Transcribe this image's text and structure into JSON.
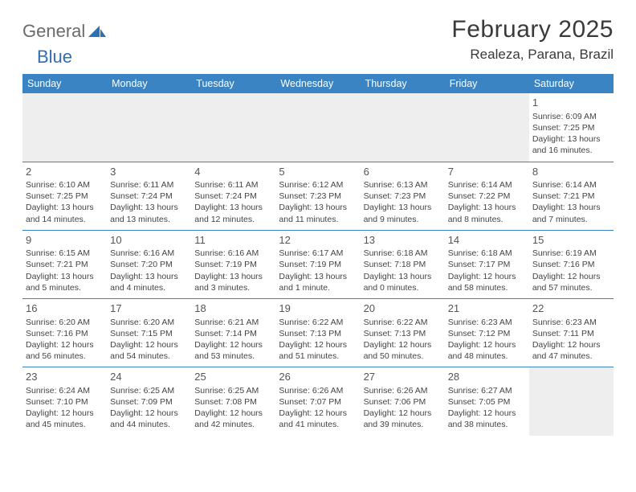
{
  "logo": {
    "text1": "General",
    "text2": "Blue"
  },
  "title": "February 2025",
  "location": "Realeza, Parana, Brazil",
  "colors": {
    "header_bg": "#3b84c4",
    "header_text": "#ffffff",
    "row_border": "#3b84c4",
    "blank_bg": "#eeeeee",
    "logo_gray": "#6a6a6a",
    "logo_blue": "#2f6fb3"
  },
  "weekdays": [
    "Sunday",
    "Monday",
    "Tuesday",
    "Wednesday",
    "Thursday",
    "Friday",
    "Saturday"
  ],
  "weeks": [
    [
      null,
      null,
      null,
      null,
      null,
      null,
      {
        "d": "1",
        "sr": "6:09 AM",
        "ss": "7:25 PM",
        "dl": "13 hours and 16 minutes."
      }
    ],
    [
      {
        "d": "2",
        "sr": "6:10 AM",
        "ss": "7:25 PM",
        "dl": "13 hours and 14 minutes."
      },
      {
        "d": "3",
        "sr": "6:11 AM",
        "ss": "7:24 PM",
        "dl": "13 hours and 13 minutes."
      },
      {
        "d": "4",
        "sr": "6:11 AM",
        "ss": "7:24 PM",
        "dl": "13 hours and 12 minutes."
      },
      {
        "d": "5",
        "sr": "6:12 AM",
        "ss": "7:23 PM",
        "dl": "13 hours and 11 minutes."
      },
      {
        "d": "6",
        "sr": "6:13 AM",
        "ss": "7:23 PM",
        "dl": "13 hours and 9 minutes."
      },
      {
        "d": "7",
        "sr": "6:14 AM",
        "ss": "7:22 PM",
        "dl": "13 hours and 8 minutes."
      },
      {
        "d": "8",
        "sr": "6:14 AM",
        "ss": "7:21 PM",
        "dl": "13 hours and 7 minutes."
      }
    ],
    [
      {
        "d": "9",
        "sr": "6:15 AM",
        "ss": "7:21 PM",
        "dl": "13 hours and 5 minutes."
      },
      {
        "d": "10",
        "sr": "6:16 AM",
        "ss": "7:20 PM",
        "dl": "13 hours and 4 minutes."
      },
      {
        "d": "11",
        "sr": "6:16 AM",
        "ss": "7:19 PM",
        "dl": "13 hours and 3 minutes."
      },
      {
        "d": "12",
        "sr": "6:17 AM",
        "ss": "7:19 PM",
        "dl": "13 hours and 1 minute."
      },
      {
        "d": "13",
        "sr": "6:18 AM",
        "ss": "7:18 PM",
        "dl": "13 hours and 0 minutes."
      },
      {
        "d": "14",
        "sr": "6:18 AM",
        "ss": "7:17 PM",
        "dl": "12 hours and 58 minutes."
      },
      {
        "d": "15",
        "sr": "6:19 AM",
        "ss": "7:16 PM",
        "dl": "12 hours and 57 minutes."
      }
    ],
    [
      {
        "d": "16",
        "sr": "6:20 AM",
        "ss": "7:16 PM",
        "dl": "12 hours and 56 minutes."
      },
      {
        "d": "17",
        "sr": "6:20 AM",
        "ss": "7:15 PM",
        "dl": "12 hours and 54 minutes."
      },
      {
        "d": "18",
        "sr": "6:21 AM",
        "ss": "7:14 PM",
        "dl": "12 hours and 53 minutes."
      },
      {
        "d": "19",
        "sr": "6:22 AM",
        "ss": "7:13 PM",
        "dl": "12 hours and 51 minutes."
      },
      {
        "d": "20",
        "sr": "6:22 AM",
        "ss": "7:13 PM",
        "dl": "12 hours and 50 minutes."
      },
      {
        "d": "21",
        "sr": "6:23 AM",
        "ss": "7:12 PM",
        "dl": "12 hours and 48 minutes."
      },
      {
        "d": "22",
        "sr": "6:23 AM",
        "ss": "7:11 PM",
        "dl": "12 hours and 47 minutes."
      }
    ],
    [
      {
        "d": "23",
        "sr": "6:24 AM",
        "ss": "7:10 PM",
        "dl": "12 hours and 45 minutes."
      },
      {
        "d": "24",
        "sr": "6:25 AM",
        "ss": "7:09 PM",
        "dl": "12 hours and 44 minutes."
      },
      {
        "d": "25",
        "sr": "6:25 AM",
        "ss": "7:08 PM",
        "dl": "12 hours and 42 minutes."
      },
      {
        "d": "26",
        "sr": "6:26 AM",
        "ss": "7:07 PM",
        "dl": "12 hours and 41 minutes."
      },
      {
        "d": "27",
        "sr": "6:26 AM",
        "ss": "7:06 PM",
        "dl": "12 hours and 39 minutes."
      },
      {
        "d": "28",
        "sr": "6:27 AM",
        "ss": "7:05 PM",
        "dl": "12 hours and 38 minutes."
      },
      null
    ]
  ],
  "labels": {
    "sunrise": "Sunrise:",
    "sunset": "Sunset:",
    "daylight": "Daylight:"
  }
}
